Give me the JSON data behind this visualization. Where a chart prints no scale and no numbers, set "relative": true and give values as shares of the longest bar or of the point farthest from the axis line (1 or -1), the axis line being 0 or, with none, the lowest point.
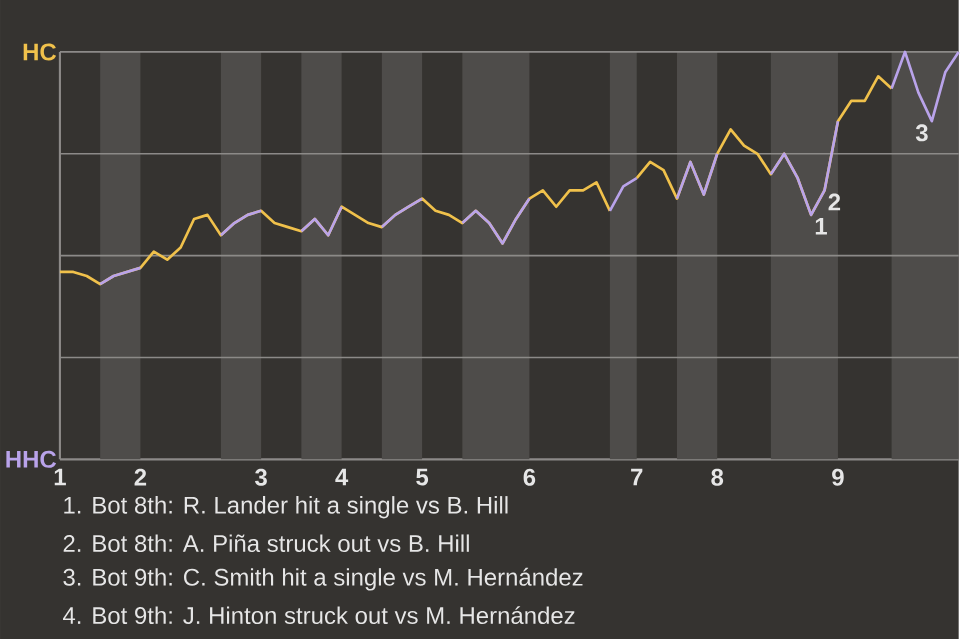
{
  "chart_data": {
    "type": "line",
    "relative": true,
    "categories": [
      "1",
      null,
      null,
      null,
      null,
      null,
      "2",
      null,
      null,
      null,
      null,
      null,
      null,
      null,
      null,
      "3",
      null,
      null,
      null,
      null,
      null,
      "4",
      null,
      null,
      null,
      null,
      null,
      "5",
      null,
      null,
      null,
      null,
      null,
      null,
      null,
      "6",
      null,
      null,
      null,
      null,
      null,
      null,
      null,
      "7",
      null,
      null,
      null,
      null,
      null,
      "8",
      null,
      null,
      null,
      null,
      null,
      null,
      null,
      null,
      "9",
      null,
      null,
      null,
      null,
      null,
      null,
      null,
      null,
      null
    ],
    "series": [
      {
        "name": "HC",
        "color": "#f0c14b",
        "values": [
          0.46,
          0.46,
          0.45,
          0.43,
          0.45,
          0.46,
          0.47,
          0.51,
          0.49,
          0.52,
          0.59,
          0.6,
          0.55,
          0.58,
          0.6,
          0.61,
          0.58,
          0.57,
          0.56,
          0.59,
          0.55,
          0.62,
          0.6,
          0.58,
          0.57,
          0.6,
          0.62,
          0.64,
          0.61,
          0.6,
          0.58,
          0.61,
          0.58,
          0.53,
          0.59,
          0.64,
          0.66,
          0.62,
          0.66,
          0.66,
          0.68,
          0.61,
          null,
          0.69,
          0.73,
          0.71,
          0.64,
          0.73,
          0.65,
          0.75,
          0.81,
          0.77,
          0.75,
          0.7,
          0.75,
          0.69,
          0.6,
          0.66,
          0.83,
          0.88,
          0.88,
          0.94,
          0.91,
          null,
          null,
          null,
          null,
          null
        ]
      },
      {
        "name": "HHC",
        "color": "#b9a3ea",
        "values": [
          null,
          null,
          null,
          0.43,
          0.45,
          0.46,
          0.47,
          null,
          null,
          null,
          null,
          null,
          0.55,
          0.58,
          0.6,
          0.61,
          null,
          null,
          0.56,
          0.59,
          0.55,
          0.62,
          null,
          null,
          0.57,
          0.6,
          0.62,
          0.64,
          null,
          null,
          0.58,
          0.61,
          0.58,
          0.53,
          0.59,
          0.64,
          null,
          null,
          null,
          null,
          null,
          0.61,
          0.67,
          0.69,
          null,
          null,
          0.64,
          0.73,
          0.65,
          0.75,
          null,
          null,
          null,
          0.7,
          0.75,
          0.69,
          0.6,
          0.66,
          0.83,
          null,
          null,
          null,
          0.91,
          1.0,
          0.9,
          0.83,
          0.95,
          1.0
        ]
      }
    ],
    "grid": "y",
    "annotations": [
      {
        "text": "1",
        "y": 0.6
      },
      {
        "text": "2",
        "y": 0.66
      },
      {
        "text": "3",
        "y": 0.83
      },
      "1. Bot 8th: R. Lander hit a single vs B. Hill",
      "2. Bot 8th: A. Piña struck out vs B. Hill",
      "3. Bot 9th: C. Smith hit a single vs M. Hernández",
      "4. Bot 9th: J. Hinton struck out vs M. Hernández"
    ]
  }
}
